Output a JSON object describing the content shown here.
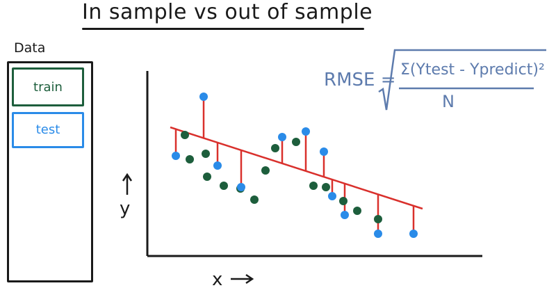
{
  "title": "In sample vs out of sample",
  "data_panel": {
    "label": "Data",
    "train_label": "train",
    "test_label": "test"
  },
  "formula": {
    "lhs": "RMSE =",
    "numerator": "Σ(Ytest - Ypredict)²",
    "denominator": "N"
  },
  "axes": {
    "x_label": "x",
    "y_label": "y"
  },
  "colors": {
    "train": "#1d5e3c",
    "test": "#2a8be8",
    "line": "#d9302c",
    "formula": "#5d7bad",
    "ink": "#1a1a1a"
  },
  "chart_data": {
    "type": "scatter",
    "regression_line": {
      "from": [
        245,
        183
      ],
      "to": [
        608,
        300
      ]
    },
    "train_points": [
      [
        266,
        194
      ],
      [
        273,
        229
      ],
      [
        296,
        221
      ],
      [
        298,
        254
      ],
      [
        322,
        267
      ],
      [
        346,
        271
      ],
      [
        366,
        287
      ],
      [
        382,
        245
      ],
      [
        396,
        213
      ],
      [
        426,
        204
      ],
      [
        451,
        267
      ],
      [
        469,
        269
      ],
      [
        494,
        289
      ],
      [
        514,
        303
      ],
      [
        544,
        315
      ]
    ],
    "test_points": [
      [
        253,
        224
      ],
      [
        293,
        139
      ],
      [
        313,
        238
      ],
      [
        347,
        269
      ],
      [
        406,
        197
      ],
      [
        440,
        189
      ],
      [
        466,
        218
      ],
      [
        478,
        282
      ],
      [
        496,
        309
      ],
      [
        544,
        336
      ],
      [
        595,
        336
      ]
    ]
  }
}
